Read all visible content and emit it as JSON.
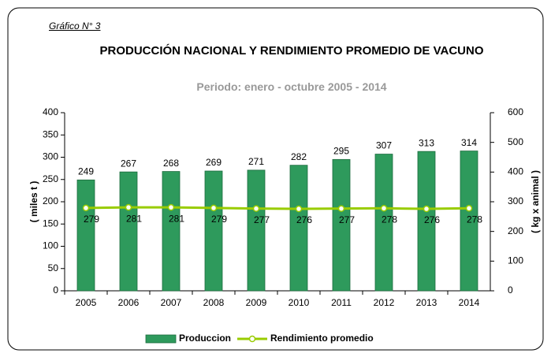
{
  "chart_data": {
    "type": "bar",
    "label": "Gráfico N° 3",
    "title": "PRODUCCIÓN  NACIONAL Y RENDIMIENTO PROMEDIO DE VACUNO",
    "subtitle": "Periodo: enero - octubre 2005 - 2014",
    "ylabel": "( miles t )",
    "y2label": "( kg x animal )",
    "categories": [
      "2005",
      "2006",
      "2007",
      "2008",
      "2009",
      "2010",
      "2011",
      "2012",
      "2013",
      "2014"
    ],
    "series": [
      {
        "name": "Produccion",
        "type": "bar",
        "color": "#2e9a5c",
        "values": [
          249,
          267,
          268,
          269,
          271,
          282,
          295,
          307,
          313,
          314
        ]
      },
      {
        "name": "Rendimiento promedio",
        "type": "line",
        "axis": "y2",
        "color": "#99cc00",
        "values": [
          279,
          281,
          281,
          279,
          277,
          276,
          277,
          278,
          276,
          278
        ]
      }
    ],
    "ylim": [
      0,
      400
    ],
    "yticks": [
      0,
      50,
      100,
      150,
      200,
      250,
      300,
      350,
      400
    ],
    "y2lim": [
      0,
      600
    ],
    "y2ticks": [
      0,
      100,
      200,
      300,
      400,
      500,
      600
    ],
    "legend": "bottom"
  }
}
